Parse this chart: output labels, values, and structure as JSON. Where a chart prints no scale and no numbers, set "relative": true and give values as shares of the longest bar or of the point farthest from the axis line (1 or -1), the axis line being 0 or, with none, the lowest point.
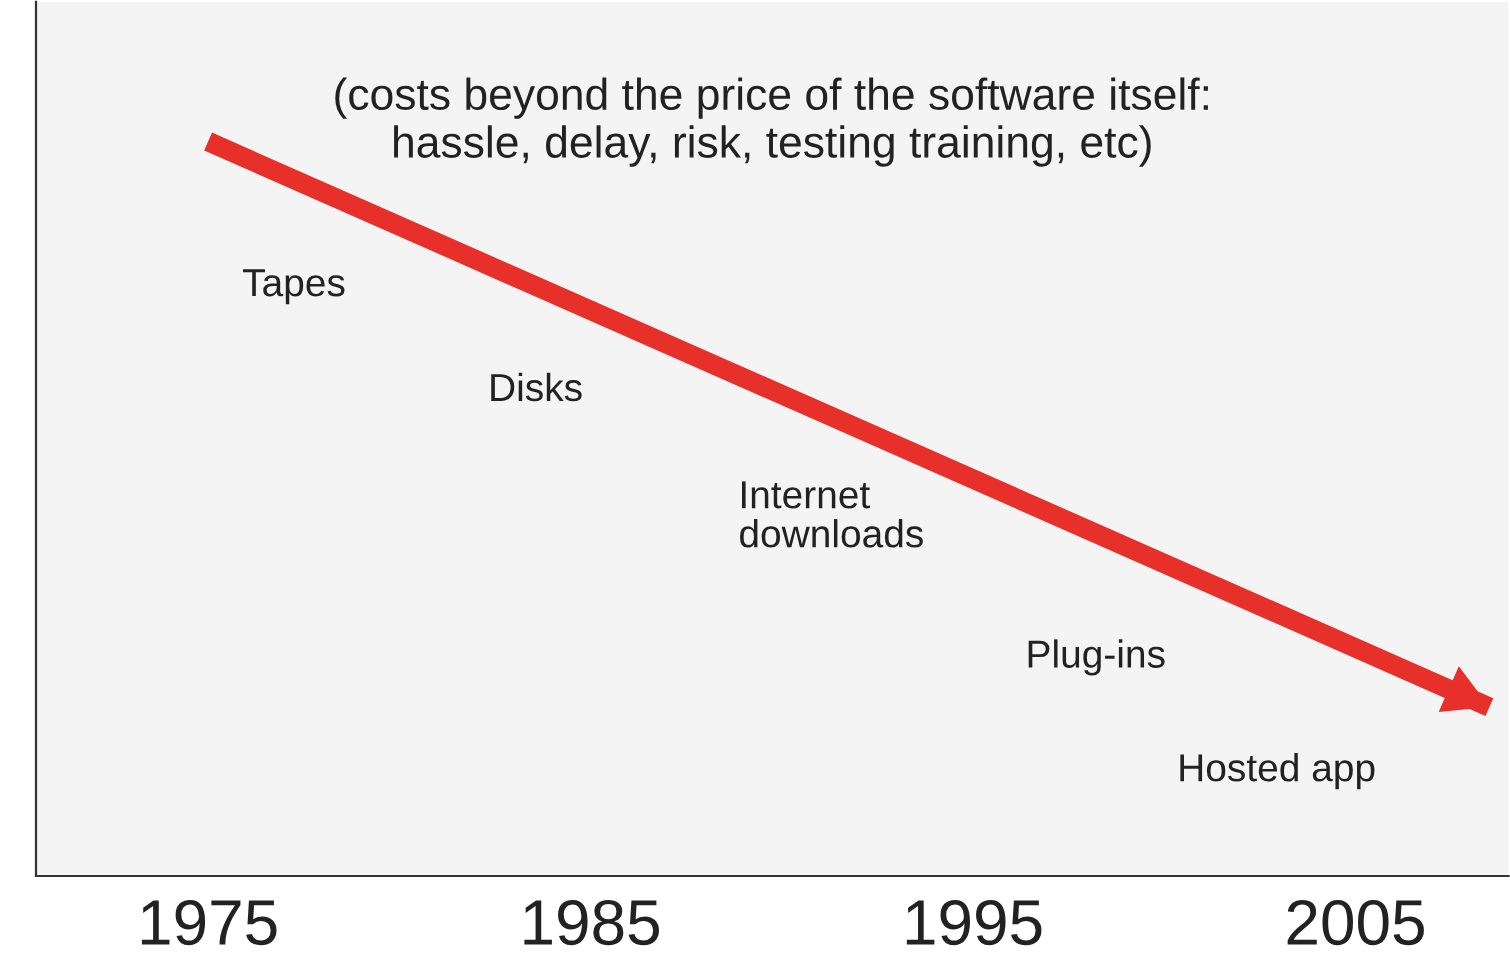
{
  "chart_data": {
    "type": "line",
    "relative": true,
    "title": "(costs beyond the price of the software itself:\nhassle, delay, risk, testing training, etc)",
    "x": [
      1975,
      2008.5
    ],
    "series": [
      {
        "color": "#e8302a",
        "values": [
          1,
          0.23
        ]
      }
    ],
    "xlim": [
      1970.5,
      2009
    ],
    "xticks": [
      1975,
      1985,
      1995,
      2005
    ],
    "grid": false,
    "legend": false,
    "marker": "none",
    "line_style": "solid",
    "annotations": [
      "Tapes",
      "Disks",
      "Internet\ndownloads",
      "Plug-ins",
      "Hosted app"
    ]
  }
}
